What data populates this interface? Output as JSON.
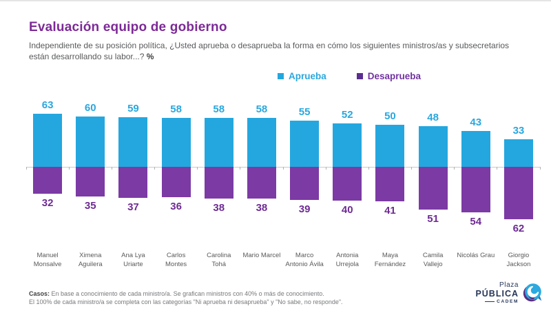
{
  "header": {
    "title": "Evaluación equipo de gobierno",
    "subtitle": "Independiente de su posición política, ¿Usted aprueba o desaprueba la forma en cómo los siguientes ministros/as y subsecretarios están desarrollando su labor...? ",
    "subtitle_pct": "%"
  },
  "legend": {
    "approve_label": "Aprueba",
    "disapprove_label": "Desaprueba"
  },
  "colors": {
    "title": "#7C2A96",
    "approve_bar": "#24A7DF",
    "approve_label": "#2AA7DE",
    "disapprove_bar": "#7C3AA4",
    "disapprove_label": "#6E2B93",
    "legend_approve_marker": "#24A7DF",
    "legend_disapprove_marker": "#5C2E91",
    "legend_approve_text": "#2AA7DE",
    "legend_disapprove_text": "#7232A0"
  },
  "chart_data": {
    "type": "bar",
    "subtype": "diverging-vertical",
    "title": "Evaluación equipo de gobierno",
    "unit": "%",
    "categories": [
      "Manuel Monsalve",
      "Ximena Aguilera",
      "Ana Lya Uriarte",
      "Carlos Montes",
      "Carolina Tohá",
      "Mario Marcel",
      "Marco Antonio Ávila",
      "Antonia Urrejola",
      "Maya Fernández",
      "Camila Vallejo",
      "Nicolás Grau",
      "Giorgio Jackson"
    ],
    "series": [
      {
        "name": "Aprueba",
        "direction": "up",
        "color": "#24A7DF",
        "values": [
          63,
          60,
          59,
          58,
          58,
          58,
          55,
          52,
          50,
          48,
          43,
          33
        ]
      },
      {
        "name": "Desaprueba",
        "direction": "down",
        "color": "#7C3AA4",
        "values": [
          32,
          35,
          37,
          36,
          38,
          38,
          39,
          40,
          41,
          51,
          54,
          62
        ]
      }
    ],
    "value_labels": true,
    "axis": {
      "baseline": 0,
      "gridlines": false,
      "ticks_between_categories": true
    },
    "legend_position": "top-center"
  },
  "footer": {
    "casos_prefix": "Casos:",
    "line1": " En base a conocimiento de cada ministro/a. Se grafican ministros con 40% o más de conocimiento.",
    "line2": "El 100% de cada ministro/a se completa con las categorías \"Ni aprueba ni desaprueba\" y \"No sabe, no responde\"."
  },
  "logo": {
    "line1": "Plaza",
    "line2": "PÚBLICA",
    "line3": "CADEM"
  }
}
